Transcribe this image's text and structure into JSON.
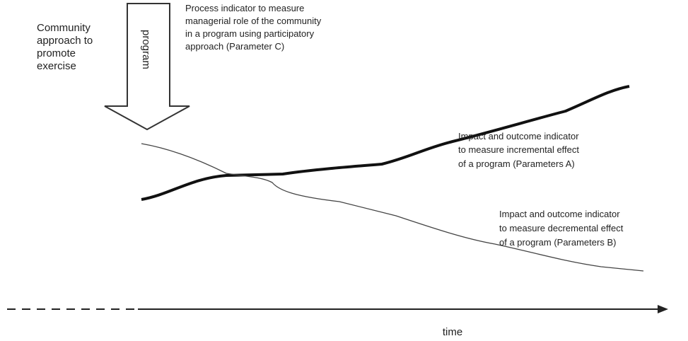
{
  "approach_label": {
    "lines": [
      "Community",
      "approach to",
      "promote",
      "exercise"
    ]
  },
  "arrow_label": "program",
  "process_indicator": {
    "lines": [
      "Process indicator to measure",
      "managerial role of the community",
      "in a program using participatory",
      "approach (Parameter C)"
    ]
  },
  "indicator_a": {
    "lines": [
      "Impact and outcome indicator",
      "to measure incremental effect",
      "of a program (Parameters A)"
    ]
  },
  "indicator_b": {
    "lines": [
      "Impact and outcome indicator",
      "to measure decremental effect",
      "of a program (Parameters B)"
    ]
  },
  "axis_label": "time"
}
